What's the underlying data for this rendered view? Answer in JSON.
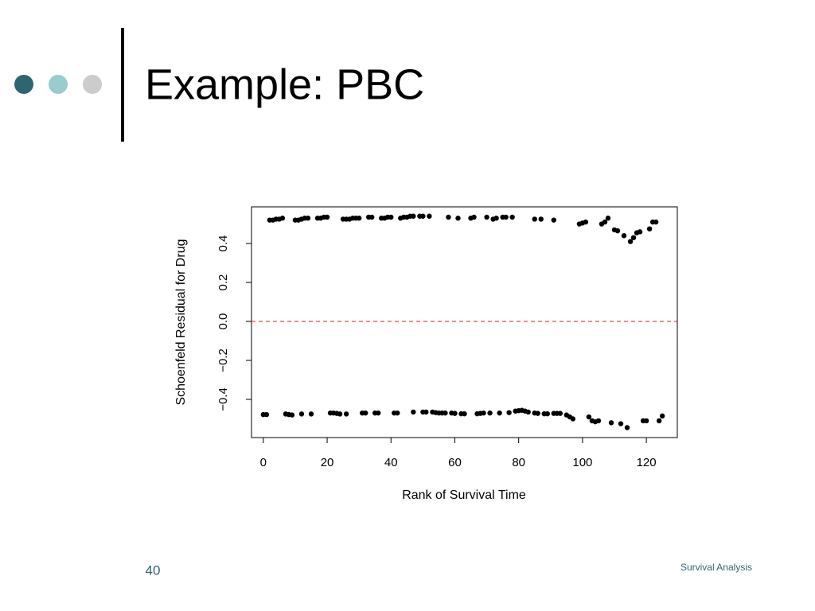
{
  "slide": {
    "title": "Example: PBC",
    "page_number": "40",
    "footer": "Survival Analysis"
  },
  "chart_data": {
    "type": "scatter",
    "x_label": "Rank of Survival Time",
    "y_label": "Schoenfeld Residual for Drug",
    "color": "#000000",
    "xlim": [
      -3.7,
      129.7
    ],
    "ylim": [
      -0.596,
      0.588
    ],
    "xticks": [
      0,
      20,
      40,
      60,
      80,
      100,
      120
    ],
    "yticks": [
      {
        "value": -0.4,
        "label": "−0.4"
      },
      {
        "value": -0.2,
        "label": "−0.2"
      },
      {
        "value": 0,
        "label": "0.0"
      },
      0.2,
      0.4
    ],
    "reference_line": {
      "value": 0,
      "color": "#e41a1c",
      "style": "dashed"
    },
    "x": [
      2,
      3,
      4,
      5,
      6,
      10,
      11,
      12,
      13,
      14,
      17,
      18,
      19,
      20,
      25,
      26,
      27,
      28,
      29,
      30,
      33,
      34,
      37,
      38,
      39,
      40,
      43,
      44,
      45,
      46,
      47,
      49,
      50,
      52,
      58,
      61,
      65,
      66,
      70,
      72,
      73,
      75,
      76,
      78,
      85,
      87,
      91,
      99,
      100,
      101,
      106,
      107,
      108,
      110,
      111,
      113,
      115,
      116,
      117,
      118,
      121,
      122,
      123,
      0,
      1,
      7,
      8,
      9,
      12,
      15,
      21,
      22,
      23,
      24,
      26,
      31,
      32,
      35,
      36,
      41,
      42,
      47,
      50,
      51,
      53,
      54,
      55,
      56,
      57,
      59,
      60,
      62,
      63,
      67,
      68,
      69,
      71,
      74,
      77,
      79,
      80,
      81,
      82,
      83,
      85,
      86,
      88,
      89,
      91,
      92,
      93,
      95,
      96,
      97,
      102,
      103,
      104,
      105,
      109,
      112,
      114,
      119,
      120,
      124,
      125
    ],
    "y": [
      0.52,
      0.52,
      0.525,
      0.525,
      0.53,
      0.52,
      0.52,
      0.525,
      0.53,
      0.53,
      0.53,
      0.53,
      0.535,
      0.535,
      0.525,
      0.525,
      0.525,
      0.53,
      0.53,
      0.53,
      0.535,
      0.535,
      0.53,
      0.53,
      0.535,
      0.535,
      0.53,
      0.535,
      0.535,
      0.54,
      0.54,
      0.54,
      0.54,
      0.54,
      0.535,
      0.53,
      0.53,
      0.535,
      0.535,
      0.525,
      0.53,
      0.535,
      0.535,
      0.535,
      0.525,
      0.525,
      0.52,
      0.5,
      0.505,
      0.51,
      0.5,
      0.51,
      0.53,
      0.47,
      0.465,
      0.44,
      0.41,
      0.43,
      0.455,
      0.46,
      0.475,
      0.51,
      0.51,
      -0.478,
      -0.478,
      -0.475,
      -0.478,
      -0.48,
      -0.475,
      -0.475,
      -0.47,
      -0.47,
      -0.472,
      -0.475,
      -0.475,
      -0.47,
      -0.47,
      -0.47,
      -0.47,
      -0.47,
      -0.47,
      -0.465,
      -0.465,
      -0.465,
      -0.465,
      -0.468,
      -0.47,
      -0.47,
      -0.47,
      -0.47,
      -0.472,
      -0.474,
      -0.474,
      -0.474,
      -0.472,
      -0.47,
      -0.47,
      -0.47,
      -0.468,
      -0.46,
      -0.458,
      -0.456,
      -0.46,
      -0.465,
      -0.47,
      -0.472,
      -0.474,
      -0.474,
      -0.472,
      -0.472,
      -0.472,
      -0.48,
      -0.49,
      -0.5,
      -0.49,
      -0.51,
      -0.515,
      -0.51,
      -0.52,
      -0.525,
      -0.545,
      -0.51,
      -0.51,
      -0.51,
      -0.485
    ]
  }
}
